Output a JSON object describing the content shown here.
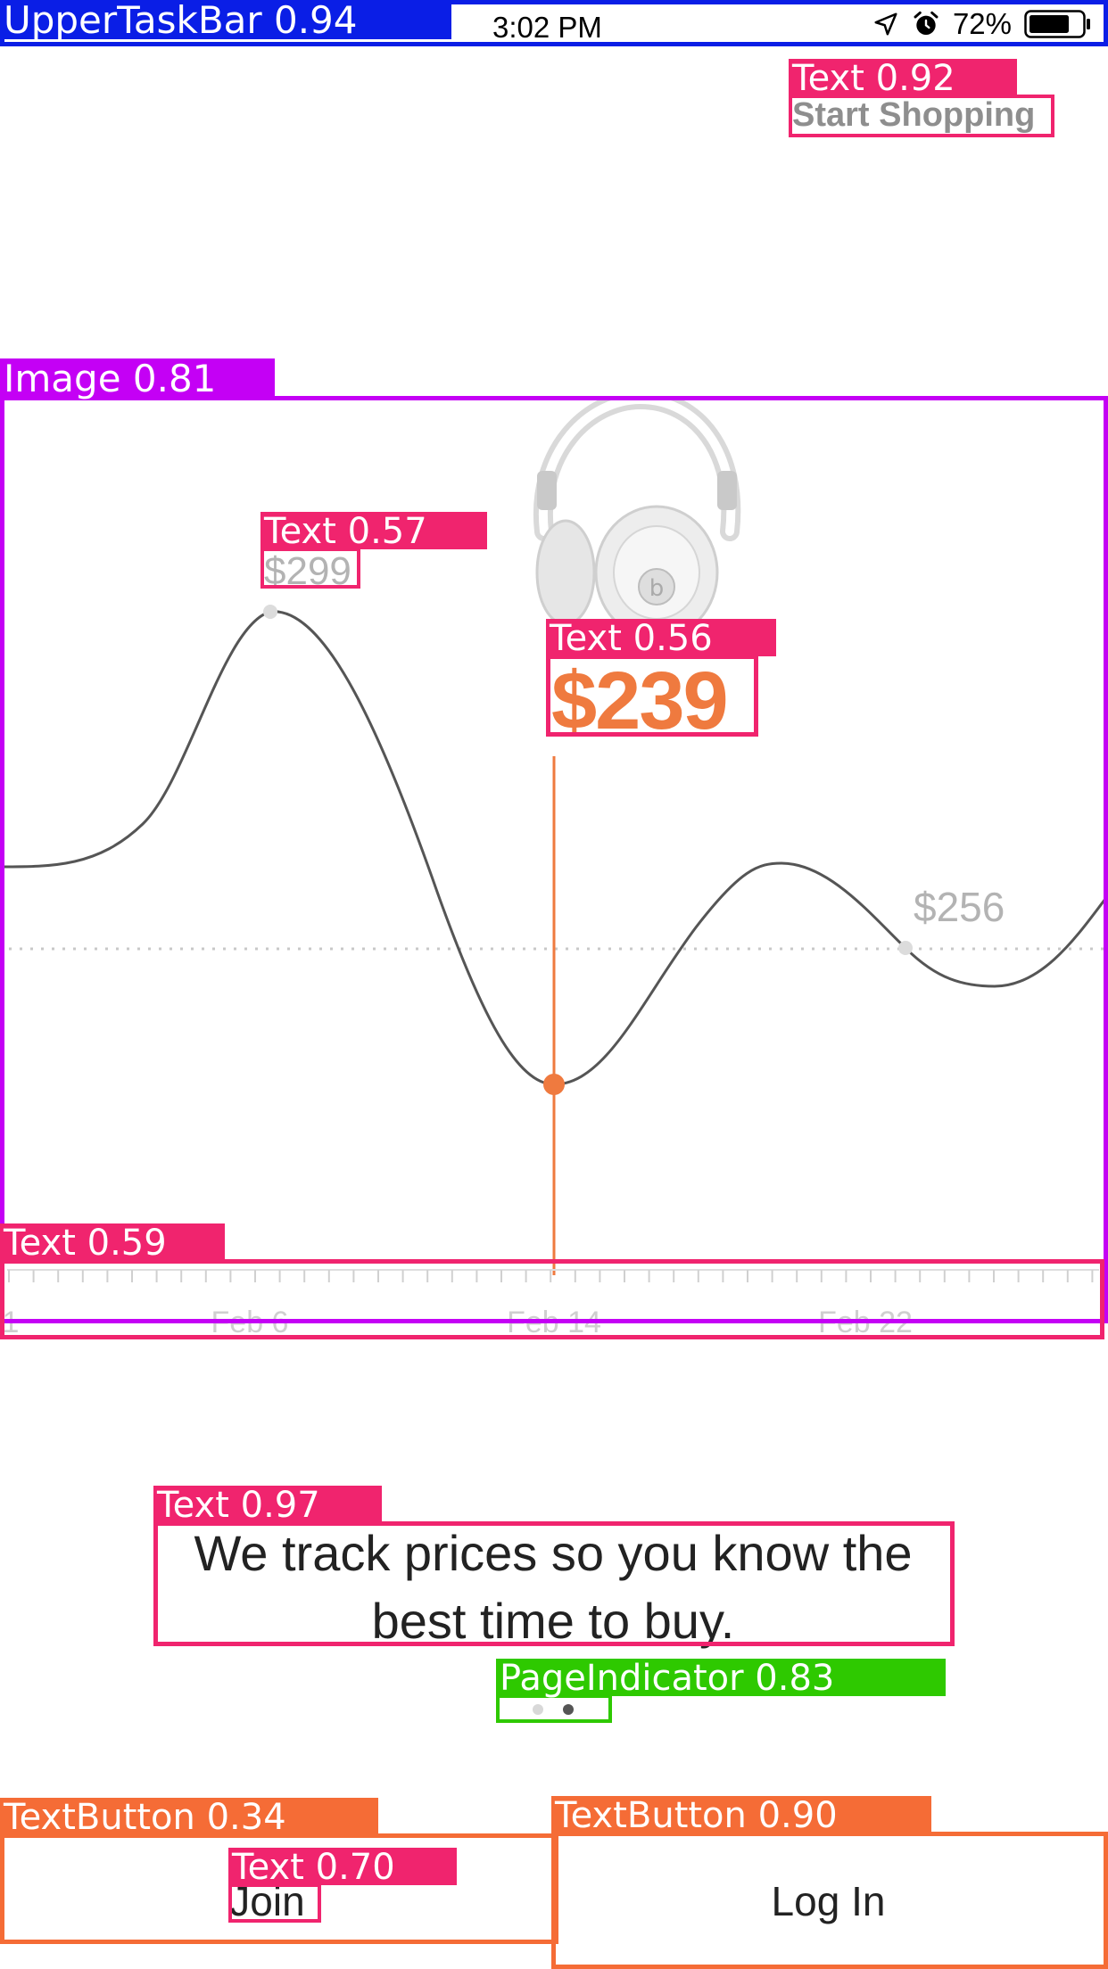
{
  "status_bar": {
    "time": "3:02 PM",
    "battery": "72%",
    "icons": [
      "location-arrow-icon",
      "alarm-icon",
      "battery-icon"
    ]
  },
  "header": {
    "start_shopping": "Start Shopping"
  },
  "chart_data": {
    "type": "line",
    "product_image": "headphones-icon",
    "x_tick_labels": [
      "1",
      "Feb 6",
      "Feb 14",
      "Feb 22"
    ],
    "annotations": [
      {
        "label": "$299",
        "value": 299
      },
      {
        "label": "$239",
        "value": 239,
        "highlight": true
      },
      {
        "label": "$256",
        "value": 256
      }
    ],
    "highlight_color": "#ef7a3f",
    "line_color": "#555555",
    "muted_label_color": "#b3b3b3"
  },
  "tagline": "We track prices so you know the best time to buy.",
  "page_indicator": {
    "count": 2,
    "active": 1
  },
  "buttons": {
    "join": "Join",
    "login": "Log In"
  },
  "annotation_tags": {
    "upper_task_bar": "UpperTaskBar  0.94",
    "text_start": "Text  0.92",
    "image": "Image  0.81",
    "text_299": "Text  0.57",
    "text_239": "Text  0.56",
    "text_ticks": "Text  0.59",
    "text_tagline": "Text  0.97",
    "page_indicator": "PageIndicator  0.83",
    "textbutton_join": "TextButton  0.34",
    "text_join": "Text  0.70",
    "textbutton_login": "TextButton  0.90"
  },
  "annotation_colors": {
    "blue": "#0a1ee6",
    "pink": "#f0246e",
    "purple": "#c400f5",
    "green": "#2ec900",
    "orange": "#f56c36"
  }
}
